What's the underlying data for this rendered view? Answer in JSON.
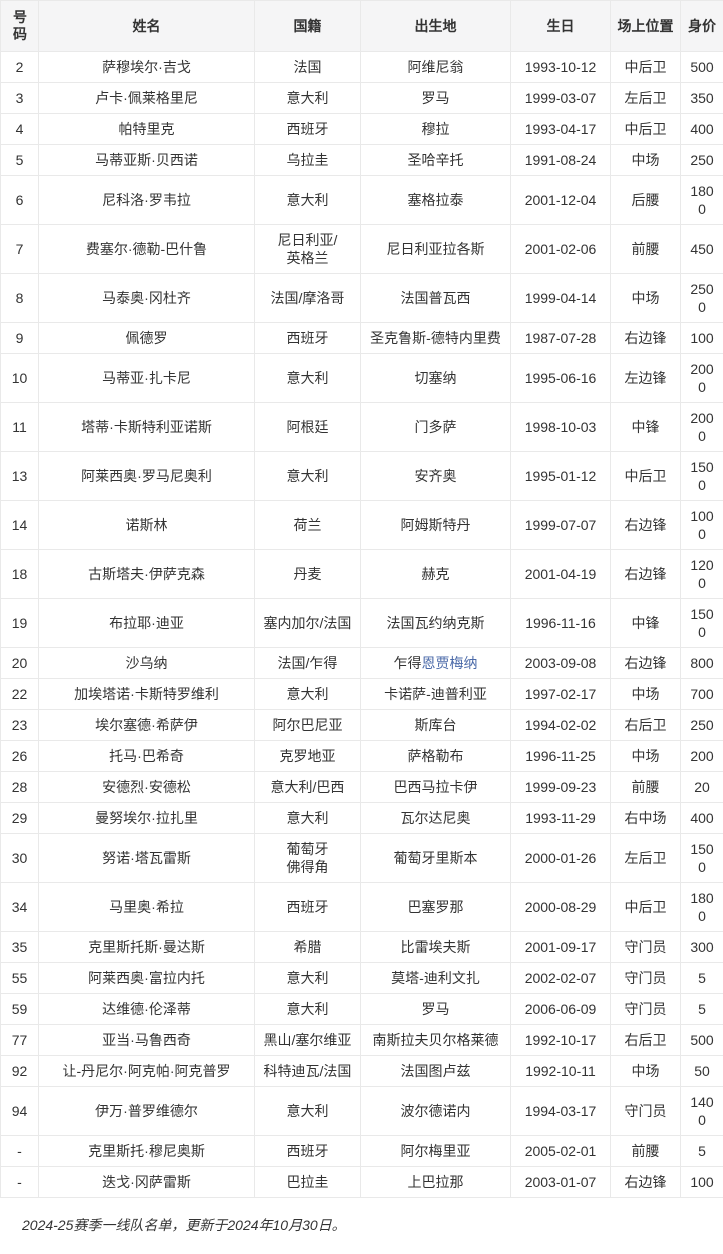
{
  "colors": {
    "header_bg": "#f5f5f6",
    "border": "#e9e9e9",
    "text": "#333333",
    "link": "#4a69a8"
  },
  "table": {
    "headers": [
      "号码",
      "姓名",
      "国籍",
      "出生地",
      "生日",
      "场上位置",
      "身价"
    ],
    "column_keys": [
      "num",
      "name",
      "nationality",
      "birthplace",
      "birthday",
      "position",
      "value"
    ],
    "rows": [
      {
        "num": "2",
        "name": "萨穆埃尔·吉戈",
        "nationality": "法国",
        "birthplace": "阿维尼翁",
        "birthday": "1993-10-12",
        "position": "中后卫",
        "value": "500"
      },
      {
        "num": "3",
        "name": "卢卡·佩莱格里尼",
        "nationality": "意大利",
        "birthplace": "罗马",
        "birthday": "1999-03-07",
        "position": "左后卫",
        "value": "350"
      },
      {
        "num": "4",
        "name": "帕特里克",
        "nationality": "西班牙",
        "birthplace": "穆拉",
        "birthday": "1993-04-17",
        "position": "中后卫",
        "value": "400"
      },
      {
        "num": "5",
        "name": "马蒂亚斯·贝西诺",
        "nationality": "乌拉圭",
        "birthplace": "圣哈辛托",
        "birthday": "1991-08-24",
        "position": "中场",
        "value": "250"
      },
      {
        "num": "6",
        "name": "尼科洛·罗韦拉",
        "nationality": "意大利",
        "birthplace": "塞格拉泰",
        "birthday": "2001-12-04",
        "position": "后腰",
        "value": "1800"
      },
      {
        "num": "7",
        "name": "费塞尔·德勒-巴什鲁",
        "nationality": "尼日利亚/英格兰",
        "birthplace": "尼日利亚拉各斯",
        "birthday": "2001-02-06",
        "position": "前腰",
        "value": "450"
      },
      {
        "num": "8",
        "name": "马泰奥·冈杜齐",
        "nationality": "法国/摩洛哥",
        "birthplace": "法国普瓦西",
        "birthday": "1999-04-14",
        "position": "中场",
        "value": "2500"
      },
      {
        "num": "9",
        "name": "佩德罗",
        "nationality": "西班牙",
        "birthplace": "圣克鲁斯-德特内里费",
        "birthday": "1987-07-28",
        "position": "右边锋",
        "value": "100"
      },
      {
        "num": "10",
        "name": "马蒂亚·扎卡尼",
        "nationality": "意大利",
        "birthplace": "切塞纳",
        "birthday": "1995-06-16",
        "position": "左边锋",
        "value": "2000"
      },
      {
        "num": "11",
        "name": "塔蒂·卡斯特利亚诺斯",
        "nationality": "阿根廷",
        "birthplace": "门多萨",
        "birthday": "1998-10-03",
        "position": "中锋",
        "value": "2000"
      },
      {
        "num": "13",
        "name": "阿莱西奥·罗马尼奥利",
        "nationality": "意大利",
        "birthplace": "安齐奥",
        "birthday": "1995-01-12",
        "position": "中后卫",
        "value": "1500"
      },
      {
        "num": "14",
        "name": "诺斯林",
        "nationality": "荷兰",
        "birthplace": "阿姆斯特丹",
        "birthday": "1999-07-07",
        "position": "右边锋",
        "value": "1000"
      },
      {
        "num": "18",
        "name": "古斯塔夫·伊萨克森",
        "nationality": "丹麦",
        "birthplace": "赫克",
        "birthday": "2001-04-19",
        "position": "右边锋",
        "value": "1200"
      },
      {
        "num": "19",
        "name": "布拉耶·迪亚",
        "nationality": "塞内加尔/法国",
        "birthplace": "法国瓦约纳克斯",
        "birthday": "1996-11-16",
        "position": "中锋",
        "value": "1500"
      },
      {
        "num": "20",
        "name": "沙乌纳",
        "nationality": "法国/乍得",
        "birthplace": "乍得",
        "birthplace_link": "恩贾梅纳",
        "birthday": "2003-09-08",
        "position": "右边锋",
        "value": "800"
      },
      {
        "num": "22",
        "name": "加埃塔诺·卡斯特罗维利",
        "nationality": "意大利",
        "birthplace": "卡诺萨-迪普利亚",
        "birthday": "1997-02-17",
        "position": "中场",
        "value": "700"
      },
      {
        "num": "23",
        "name": "埃尔塞德·希萨伊",
        "nationality": "阿尔巴尼亚",
        "birthplace": "斯库台",
        "birthday": "1994-02-02",
        "position": "右后卫",
        "value": "250"
      },
      {
        "num": "26",
        "name": "托马·巴希奇",
        "nationality": "克罗地亚",
        "birthplace": "萨格勒布",
        "birthday": "1996-11-25",
        "position": "中场",
        "value": "200"
      },
      {
        "num": "28",
        "name": "安德烈·安德松",
        "nationality": "意大利/巴西",
        "birthplace": "巴西马拉卡伊",
        "birthday": "1999-09-23",
        "position": "前腰",
        "value": "20"
      },
      {
        "num": "29",
        "name": "曼努埃尔·拉扎里",
        "nationality": "意大利",
        "birthplace": "瓦尔达尼奥",
        "birthday": "1993-11-29",
        "position": "右中场",
        "value": "400"
      },
      {
        "num": "30",
        "name": "努诺·塔瓦雷斯",
        "nationality": "葡萄牙\n佛得角",
        "birthplace": "葡萄牙里斯本",
        "birthday": "2000-01-26",
        "position": "左后卫",
        "value": "1500"
      },
      {
        "num": "34",
        "name": "马里奥·希拉",
        "nationality": "西班牙",
        "birthplace": "巴塞罗那",
        "birthday": "2000-08-29",
        "position": "中后卫",
        "value": "1800"
      },
      {
        "num": "35",
        "name": "克里斯托斯·曼达斯",
        "nationality": "希腊",
        "birthplace": "比雷埃夫斯",
        "birthday": "2001-09-17",
        "position": "守门员",
        "value": "300"
      },
      {
        "num": "55",
        "name": "阿莱西奥·富拉内托",
        "nationality": "意大利",
        "birthplace": "莫塔-迪利文扎",
        "birthday": "2002-02-07",
        "position": "守门员",
        "value": "5"
      },
      {
        "num": "59",
        "name": "达维德·伦泽蒂",
        "nationality": "意大利",
        "birthplace": "罗马",
        "birthday": "2006-06-09",
        "position": "守门员",
        "value": "5"
      },
      {
        "num": "77",
        "name": "亚当·马鲁西奇",
        "nationality": "黑山/塞尔维亚",
        "birthplace": "南斯拉夫贝尔格莱德",
        "birthday": "1992-10-17",
        "position": "右后卫",
        "value": "500"
      },
      {
        "num": "92",
        "name": "让-丹尼尔·阿克帕·阿克普罗",
        "nationality": "科特迪瓦/法国",
        "birthplace": "法国图卢兹",
        "birthday": "1992-10-11",
        "position": "中场",
        "value": "50"
      },
      {
        "num": "94",
        "name": "伊万·普罗维德尔",
        "nationality": "意大利",
        "birthplace": "波尔德诺内",
        "birthday": "1994-03-17",
        "position": "守门员",
        "value": "1400"
      },
      {
        "num": "-",
        "name": "克里斯托·穆尼奥斯",
        "nationality": "西班牙",
        "birthplace": "阿尔梅里亚",
        "birthday": "2005-02-01",
        "position": "前腰",
        "value": "5"
      },
      {
        "num": "-",
        "name": "迭戈·冈萨雷斯",
        "nationality": "巴拉圭",
        "birthplace": "上巴拉那",
        "birthday": "2003-01-07",
        "position": "右边锋",
        "value": "100"
      }
    ]
  },
  "caption": "2024-25赛季一线队名单，更新于2024年10月30日。"
}
